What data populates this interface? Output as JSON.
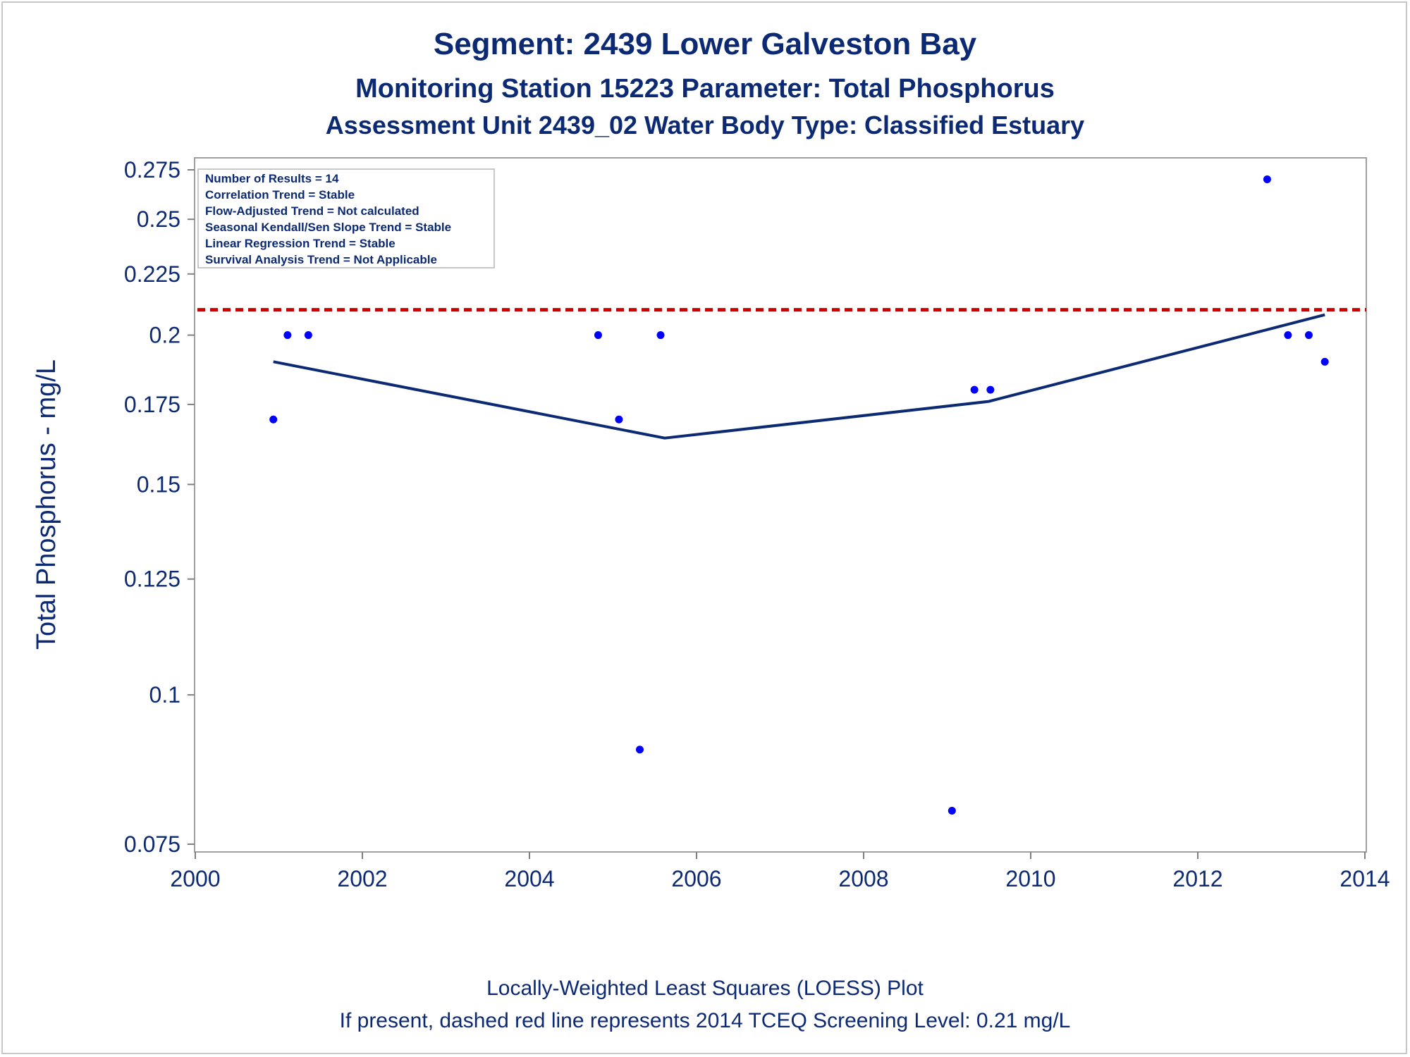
{
  "chart_data": {
    "type": "scatter",
    "title": "Segment: 2439  Lower Galveston Bay",
    "subtitle1": "Monitoring Station 15223 Parameter: Total Phosphorus",
    "subtitle2": "Assessment Unit 2439_02   Water Body Type: Classified Estuary",
    "ylabel": "Total Phosphorus - mg/L",
    "xlabel": "",
    "y_scale": "log",
    "xlim": [
      2000,
      2014
    ],
    "ylim": [
      0.0735,
      0.28
    ],
    "x_ticks": [
      2000,
      2002,
      2004,
      2006,
      2008,
      2010,
      2012,
      2014
    ],
    "y_ticks": [
      0.075,
      0.1,
      0.125,
      0.15,
      0.175,
      0.2,
      0.225,
      0.25,
      0.275
    ],
    "x_tick_labels": [
      "2000",
      "2002",
      "2004",
      "2006",
      "2008",
      "2010",
      "2012",
      "2014"
    ],
    "y_tick_labels": [
      "0.075",
      "0.1",
      "0.125",
      "0.15",
      "0.175",
      "0.2",
      "0.225",
      "0.25",
      "0.275"
    ],
    "grid": false,
    "points": [
      {
        "x": "2000-12-08",
        "y": 0.17
      },
      {
        "x": "2001-02-08",
        "y": 0.2
      },
      {
        "x": "2001-05-10",
        "y": 0.2
      },
      {
        "x": "2004-10-28",
        "y": 0.2
      },
      {
        "x": "2005-01-27",
        "y": 0.17
      },
      {
        "x": "2005-04-28",
        "y": 0.09
      },
      {
        "x": "2005-07-28",
        "y": 0.2
      },
      {
        "x": "2009-01-22",
        "y": 0.08
      },
      {
        "x": "2009-04-30",
        "y": 0.18
      },
      {
        "x": "2009-07-09",
        "y": 0.18
      },
      {
        "x": "2012-10-31",
        "y": 0.27
      },
      {
        "x": "2013-01-30",
        "y": 0.2
      },
      {
        "x": "2013-05-01",
        "y": 0.2
      },
      {
        "x": "2013-07-10",
        "y": 0.19
      }
    ],
    "loess_line": [
      {
        "x": "2000-12-08",
        "y": 0.19
      },
      {
        "x": "2005-08-15",
        "y": 0.164
      },
      {
        "x": "2009-07-01",
        "y": 0.176
      },
      {
        "x": "2013-07-10",
        "y": 0.208
      }
    ],
    "screening_level": {
      "value": 0.21,
      "style": "dashed",
      "color": "#cc0000"
    },
    "colors": {
      "points": "#0000ff",
      "loess": "#0c2a73",
      "text": "#0c2a73",
      "frame": "#a0a0a0"
    }
  },
  "inset_box": {
    "lines": [
      "Number of Results = 14",
      "Correlation Trend = Stable",
      "Flow-Adjusted Trend = Not calculated",
      "Seasonal Kendall/Sen Slope Trend = Stable",
      "Linear Regression Trend = Stable",
      "Survival Analysis Trend = Not Applicable"
    ]
  },
  "footnotes": {
    "line1": "Locally-Weighted Least Squares (LOESS) Plot",
    "line2": "If present, dashed red line represents 2014 TCEQ Screening Level: 0.21 mg/L"
  }
}
